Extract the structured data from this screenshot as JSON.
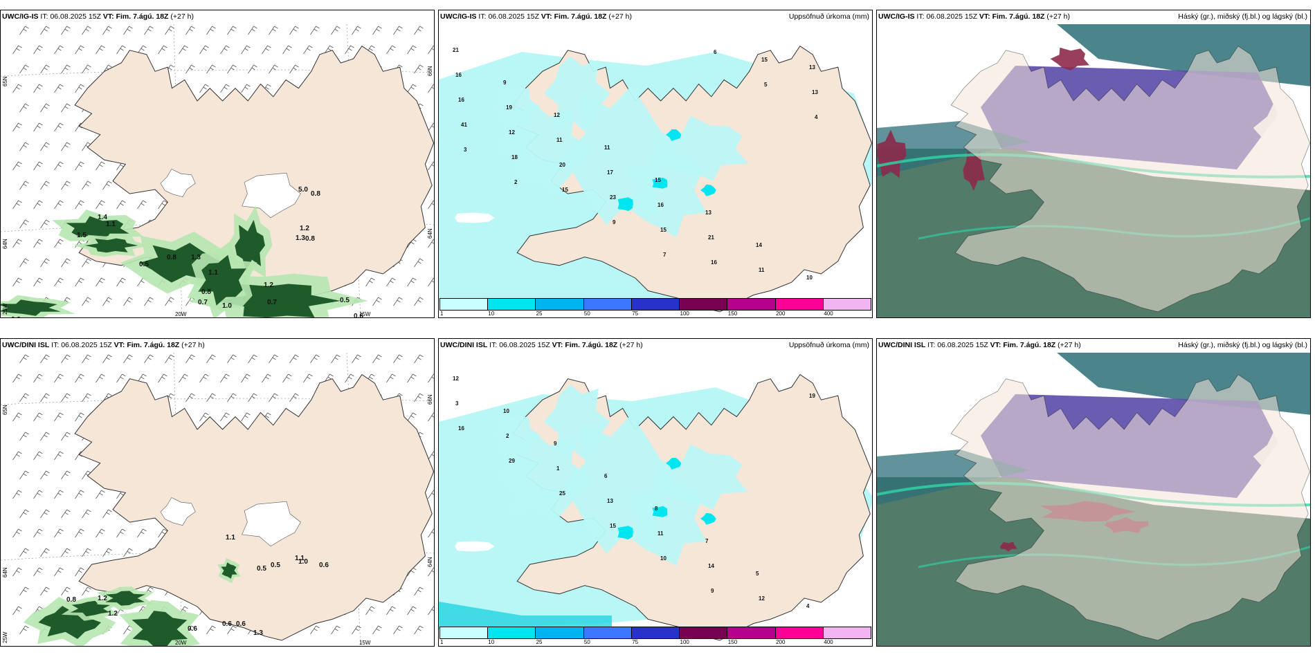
{
  "rows": [
    {
      "model": "UWC/IG-IS",
      "it_label": "IT:",
      "it_value": "06.08.2025 15Z",
      "vt_label": "VT:",
      "vt_value": "Fim. 7.ágú. 18Z",
      "lead": "(+27 h)"
    },
    {
      "model": "UWC/DINI ISL",
      "it_label": "IT:",
      "it_value": "06.08.2025 15Z",
      "vt_label": "VT:",
      "vt_value": "Fim. 7.ágú. 18Z",
      "lead": "(+27 h)"
    }
  ],
  "precip_title": "Uppsöfnuð úrkoma (mm)",
  "cloud_title": "Háský (gr.), miðský (fj.bl.) og lágský (bl.)",
  "axis_labels": {
    "lat65": "65N",
    "lat64": "64N",
    "lat66r": "66N",
    "lat64r": "64N",
    "lon20": "20W",
    "lon15": "15W",
    "lon25": "25W"
  },
  "colorbar": {
    "labels": [
      "1",
      "10",
      "25",
      "50",
      "75",
      "100",
      "150",
      "200",
      "400"
    ],
    "colors": [
      "#c8ffff",
      "#00e6f0",
      "#00b4f0",
      "#3c78ff",
      "#2832c8",
      "#780050",
      "#b4008c",
      "#ff0096",
      "#f0b4f0"
    ]
  },
  "wind_values_top": [
    "1.4",
    "1.1",
    "1.5",
    "0.5",
    "0.8",
    "1.3",
    "1.1",
    "0.8",
    "0.7",
    "1.0",
    "1.2",
    "0.7",
    "0.5",
    "0.9",
    "0.6",
    "0.8",
    "1.2",
    "1.3",
    "5.0",
    "0.8"
  ],
  "wind_values_bottom": [
    "0.8",
    "1.2",
    "1.2",
    "0.6",
    "0.6",
    "0.6",
    "0.9",
    "1.1",
    "0.5",
    "0.5",
    "1.0",
    "0.6",
    "1.3",
    "1.1"
  ],
  "precip_values_top": [
    "21",
    "9",
    "12",
    "11",
    "15",
    "13",
    "14",
    "10",
    "16",
    "19",
    "11",
    "17",
    "16",
    "21",
    "11",
    "13",
    "16",
    "12",
    "20",
    "23",
    "15",
    "16",
    "15",
    "13",
    "41",
    "18",
    "15",
    "9",
    "7",
    "6",
    "5",
    "4",
    "3",
    "2"
  ],
  "precip_values_bottom": [
    "12",
    "10",
    "9",
    "6",
    "8",
    "7",
    "5",
    "4",
    "3",
    "2",
    "1",
    "13",
    "11",
    "14",
    "12",
    "19",
    "16",
    "29",
    "25",
    "15",
    "10",
    "9"
  ],
  "colors": {
    "land": "#f5e6d8",
    "precip_light": "#b9f7f7",
    "green_dark": "#1f5a2a",
    "green_light": "#b6e6b0",
    "purple": "#5a4aa8",
    "teal": "#2d6e78",
    "darkgreen": "#3f6d5a",
    "maroon": "#8c2a4a",
    "mint": "#2fd8a8"
  }
}
